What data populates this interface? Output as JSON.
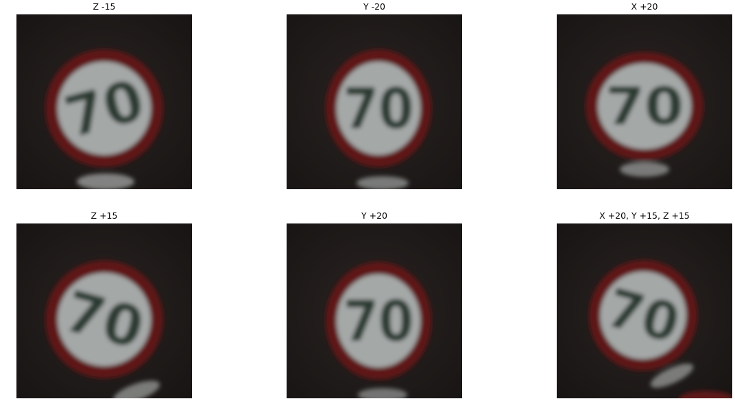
{
  "figure": {
    "panels": [
      {
        "title": "Z -15",
        "sign_text": "70",
        "description": "speed limit 70 traffic sign, rotated -15 about Z axis"
      },
      {
        "title": "Y -20",
        "sign_text": "70",
        "description": "speed limit 70 traffic sign, rotated -20 about Y axis"
      },
      {
        "title": "X +20",
        "sign_text": "70",
        "description": "speed limit 70 traffic sign, rotated +20 about X axis"
      },
      {
        "title": "Z +15",
        "sign_text": "70",
        "description": "speed limit 70 traffic sign, rotated +15 about Z axis"
      },
      {
        "title": "Y +20",
        "sign_text": "70",
        "description": "speed limit 70 traffic sign, rotated +20 about Y axis"
      },
      {
        "title": "X +20, Y +15, Z +15",
        "sign_text": "70",
        "description": "speed limit 70 traffic sign, combined rotation"
      }
    ],
    "colors": {
      "background_dark": "#1e1a19",
      "sign_ring": "#6e1c1c",
      "sign_face": "#a8acab",
      "digits": "#2b3a2f"
    }
  }
}
